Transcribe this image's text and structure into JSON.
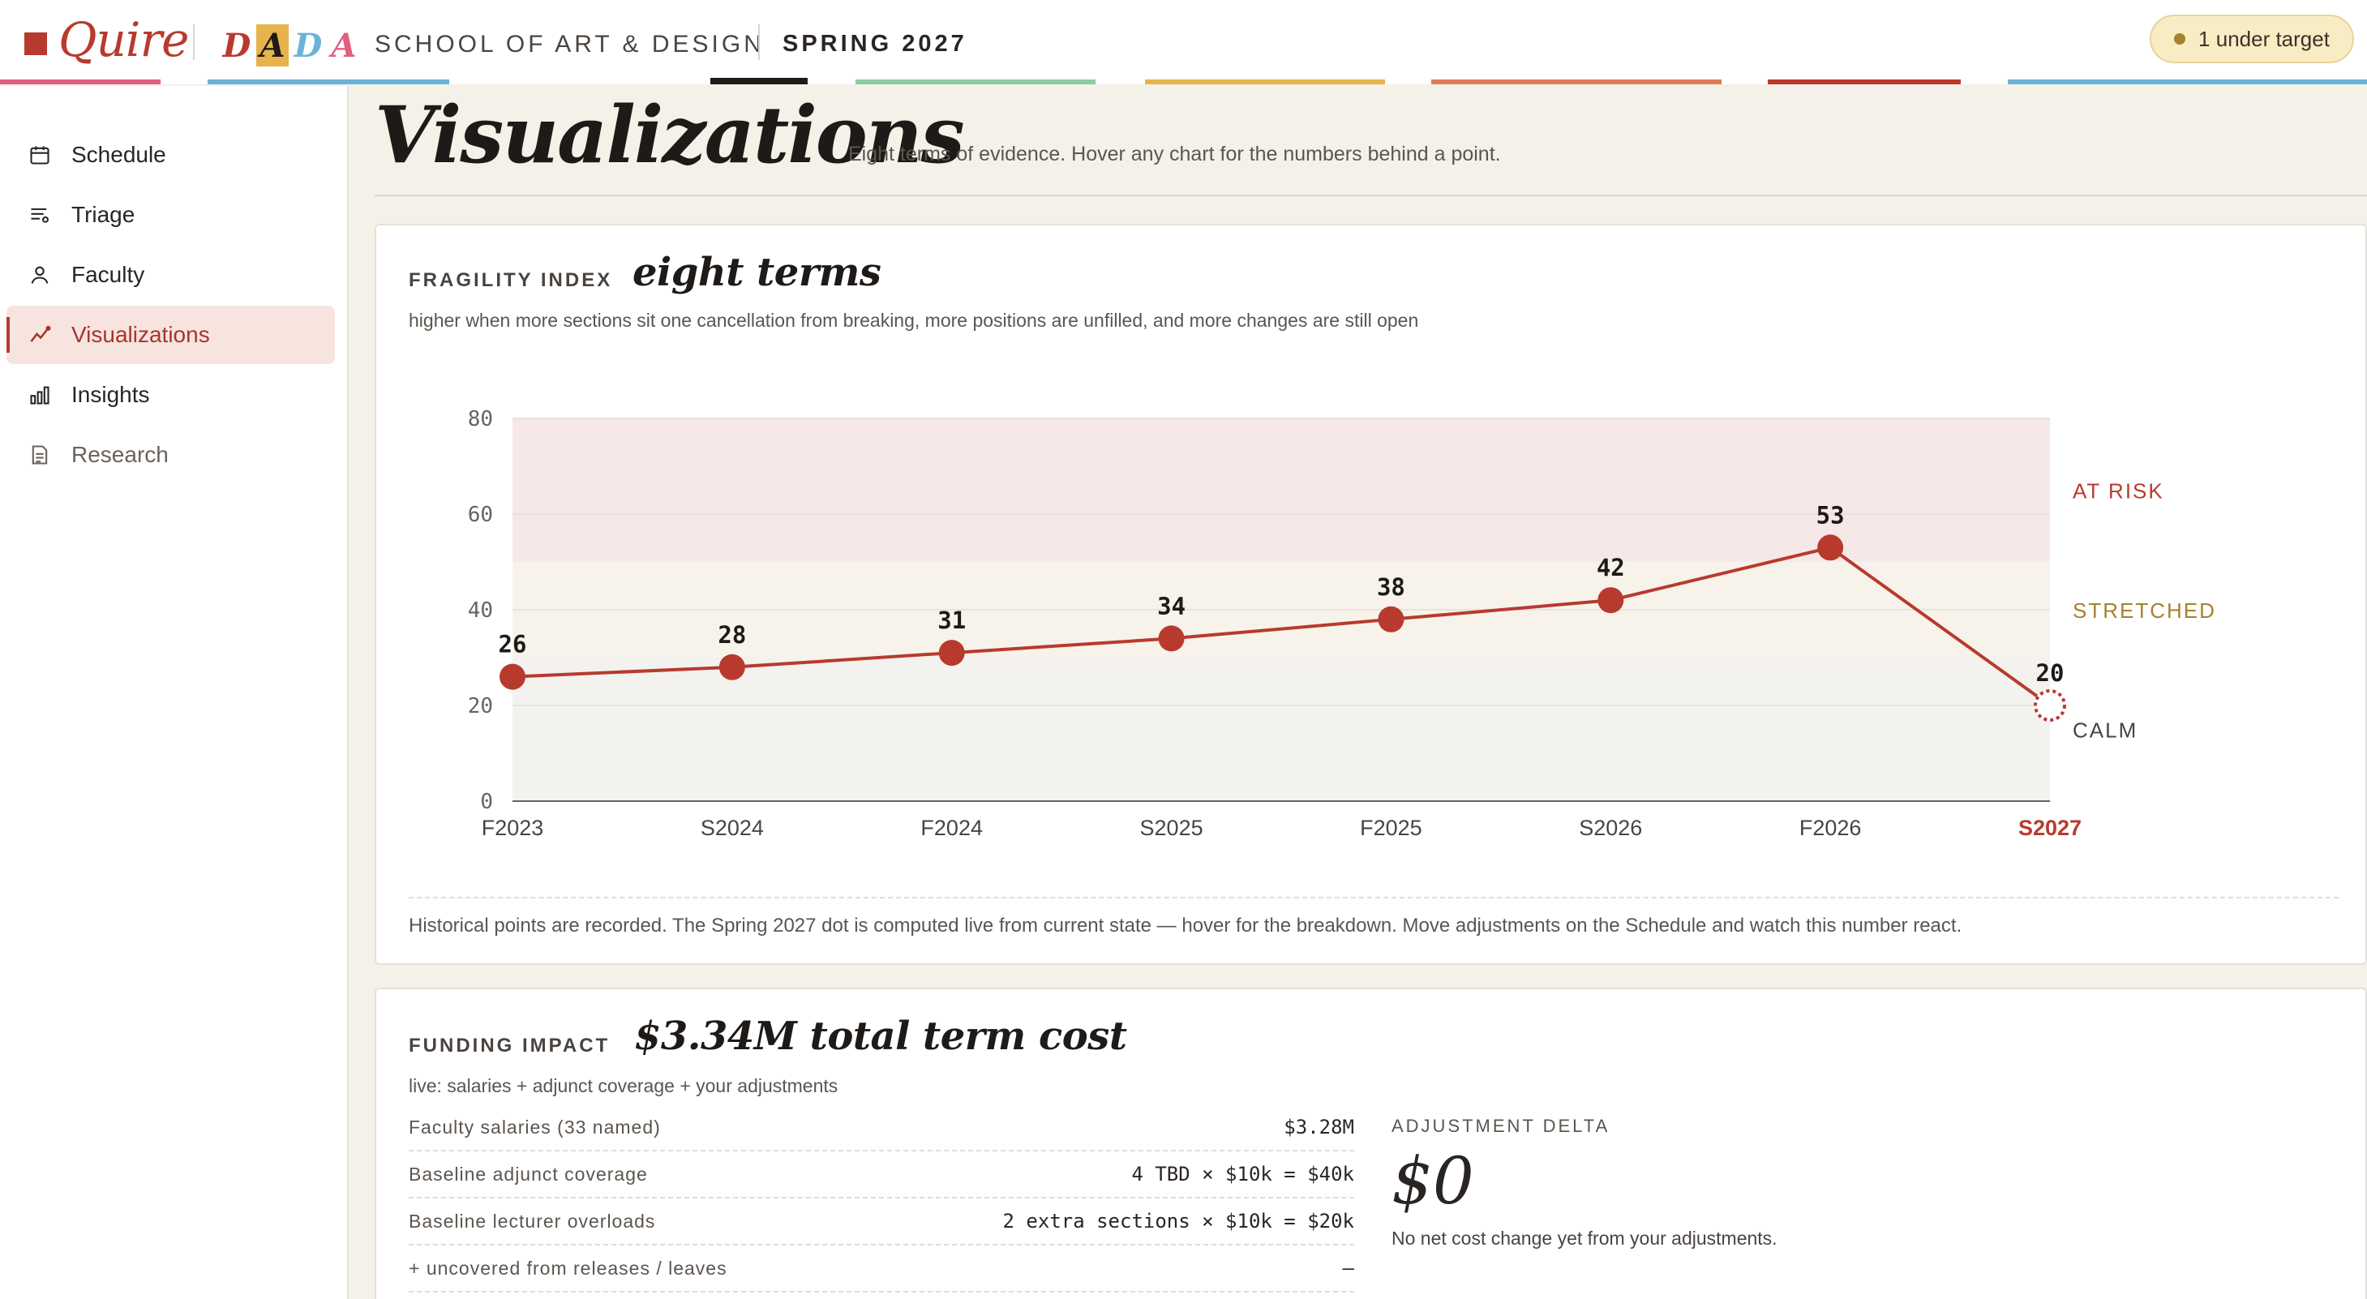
{
  "header": {
    "brand": "Quire",
    "dada_letters": [
      {
        "char": "D",
        "color": "#b83a2e",
        "bg": ""
      },
      {
        "char": "A",
        "color": "#1e1a17",
        "bg": "#e7b44c"
      },
      {
        "char": "D",
        "color": "#6bb3d6",
        "bg": ""
      },
      {
        "char": "A",
        "color": "#e0607e",
        "bg": ""
      }
    ],
    "school": "SCHOOL OF ART & DESIGN",
    "term": "SPRING 2027",
    "status": "1 under target"
  },
  "sidebar": {
    "items": [
      {
        "label": "Schedule",
        "icon": "calendar-icon"
      },
      {
        "label": "Triage",
        "icon": "filter-list-icon"
      },
      {
        "label": "Faculty",
        "icon": "person-icon"
      },
      {
        "label": "Visualizations",
        "icon": "trend-line-icon",
        "active": true
      },
      {
        "label": "Insights",
        "icon": "bar-chart-icon"
      },
      {
        "label": "Research",
        "icon": "document-icon"
      }
    ]
  },
  "page": {
    "title": "Visualizations",
    "subtitle": "Eight terms of evidence. Hover any chart for the numbers behind a point."
  },
  "fragility": {
    "eyebrow": "FRAGILITY INDEX",
    "heading": "eight terms",
    "description": "higher when more sections sit one cancellation from breaking, more positions are unfilled, and more changes are still open",
    "footnote": "Historical points are recorded. The Spring 2027 dot is computed live from current state — hover for the breakdown. Move adjustments on the Schedule and watch this number react."
  },
  "chart_data": {
    "type": "line",
    "title": "",
    "xlabel": "",
    "ylabel": "",
    "categories": [
      "F2023",
      "S2024",
      "F2024",
      "S2025",
      "F2025",
      "S2026",
      "F2026",
      "S2027"
    ],
    "series": [
      {
        "values": [
          26,
          28,
          31,
          34,
          38,
          42,
          53,
          20
        ]
      }
    ],
    "data_labels": [
      "26",
      "28",
      "31",
      "34",
      "38",
      "42",
      "53",
      "20"
    ],
    "live_point_index": 7,
    "yticks": [
      "0",
      "20",
      "40",
      "60",
      "80"
    ],
    "ylim": [
      0,
      80
    ],
    "bands": [
      {
        "label": "CALM",
        "from": 0,
        "to": 30,
        "color": "#f3f2ef",
        "label_color": "#4a4440"
      },
      {
        "label": "STRETCHED",
        "from": 30,
        "to": 50,
        "color": "#f8f3ea",
        "label_color": "#a5822e"
      },
      {
        "label": "AT RISK",
        "from": 50,
        "to": 80,
        "color": "#f6e8e6",
        "label_color": "#b83a2e"
      }
    ],
    "line_color": "#b83a2e",
    "grid": true,
    "legend": "none"
  },
  "funding": {
    "eyebrow": "FUNDING IMPACT",
    "heading": "$3.34M total term cost",
    "description": "live: salaries + adjunct coverage + your adjustments",
    "rows": [
      {
        "label": "Faculty salaries (33 named)",
        "value": "$3.28M"
      },
      {
        "label": "Baseline adjunct coverage",
        "value": "4 TBD × $10k = $40k"
      },
      {
        "label": "Baseline lecturer overloads",
        "value": "2 extra sections × $10k = $20k"
      },
      {
        "label": "+ uncovered from releases / leaves",
        "value": "—"
      }
    ],
    "delta_label": "ADJUSTMENT DELTA",
    "delta_value": "$0",
    "delta_note": "No net cost change yet from your adjustments."
  },
  "colors": {
    "accent": "#b83a2e",
    "stripes": [
      "#e0607e",
      "#6bb3d6",
      "#1e1a17",
      "#8ccba5",
      "#e7b44c",
      "#e07a5a",
      "#b83a2e",
      "#e0607e",
      "#6bb3d6"
    ]
  }
}
